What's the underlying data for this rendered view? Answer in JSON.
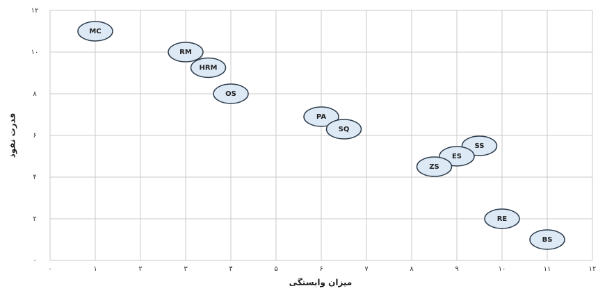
{
  "chart_data": {
    "type": "scatter",
    "x_label": "میزان وابستگی",
    "y_label": "قدرت نفوذ",
    "labels": [
      "MC",
      "RM",
      "HRM",
      "OS",
      "PA",
      "SQ",
      "SS",
      "ES",
      "ZS",
      "RE",
      "BS"
    ],
    "x": [
      1,
      3,
      3.5,
      4,
      6,
      6.5,
      9.5,
      9,
      8.5,
      10,
      11
    ],
    "y": [
      11,
      10,
      9.25,
      8,
      6.9,
      6.3,
      5.5,
      5,
      4.5,
      2,
      1
    ],
    "color": "#dde9f5",
    "xlim": [
      0,
      12
    ],
    "ylim": [
      0,
      12
    ],
    "xticks": [
      {
        "value": 0,
        "label": "۰"
      },
      {
        "value": 1,
        "label": "۱"
      },
      {
        "value": 2,
        "label": "۲"
      },
      {
        "value": 3,
        "label": "۳"
      },
      {
        "value": 4,
        "label": "۴"
      },
      {
        "value": 5,
        "label": "۵"
      },
      {
        "value": 6,
        "label": "۶"
      },
      {
        "value": 7,
        "label": "۷"
      },
      {
        "value": 8,
        "label": "۸"
      },
      {
        "value": 9,
        "label": "۹"
      },
      {
        "value": 10,
        "label": "۱۰"
      },
      {
        "value": 11,
        "label": "۱۱"
      },
      {
        "value": 12,
        "label": "۱۲"
      }
    ],
    "yticks": [
      {
        "value": 0,
        "label": "۰"
      },
      {
        "value": 2,
        "label": "۲"
      },
      {
        "value": 4,
        "label": "۴"
      },
      {
        "value": 6,
        "label": "۶"
      },
      {
        "value": 8,
        "label": "۸"
      },
      {
        "value": 10,
        "label": "۱۰"
      },
      {
        "value": 12,
        "label": "۱۲"
      }
    ],
    "grid": true
  }
}
